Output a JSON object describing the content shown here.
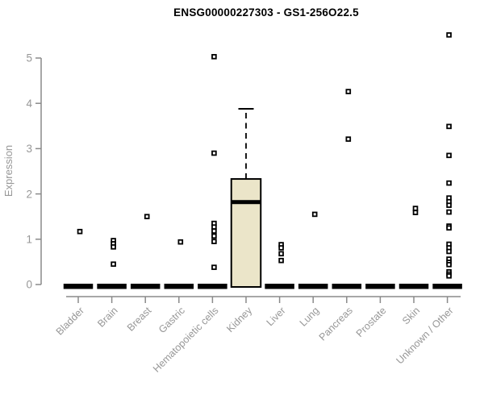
{
  "chart_data": {
    "type": "boxplot",
    "title": "ENSG00000227303 - GS1-256O22.5",
    "xlabel": "",
    "ylabel": "Expression",
    "ylim": [
      0,
      5.6
    ],
    "yticks": [
      0,
      1,
      2,
      3,
      4,
      5
    ],
    "grid": false,
    "legend": null,
    "categories": [
      "Bladder",
      "Brain",
      "Breast",
      "Gastric",
      "Hematopoietic cells",
      "Kidney",
      "Liver",
      "Lung",
      "Pancreas",
      "Prostate",
      "Skin",
      "Unknown / Other"
    ],
    "boxes": [
      {
        "category": "Bladder",
        "q1": 0,
        "median": 0,
        "q3": 0,
        "whisker_low": 0,
        "whisker_high": 0,
        "outliers": [
          1.17
        ]
      },
      {
        "category": "Brain",
        "q1": 0,
        "median": 0,
        "q3": 0,
        "whisker_low": 0,
        "whisker_high": 0,
        "outliers": [
          0.97,
          0.9,
          0.83,
          0.45
        ]
      },
      {
        "category": "Breast",
        "q1": 0,
        "median": 0,
        "q3": 0,
        "whisker_low": 0,
        "whisker_high": 0,
        "outliers": [
          1.5
        ]
      },
      {
        "category": "Gastric",
        "q1": 0,
        "median": 0,
        "q3": 0,
        "whisker_low": 0,
        "whisker_high": 0,
        "outliers": [
          0.94
        ]
      },
      {
        "category": "Hematopoietic cells",
        "q1": 0,
        "median": 0,
        "q3": 0,
        "whisker_low": 0,
        "whisker_high": 0,
        "outliers": [
          5.03,
          2.9,
          1.35,
          1.27,
          1.18,
          1.07,
          0.95,
          0.38
        ]
      },
      {
        "category": "Kidney",
        "q1": 0,
        "median": 1.82,
        "q3": 2.33,
        "whisker_low": 0,
        "whisker_high": 3.88,
        "outliers": []
      },
      {
        "category": "Liver",
        "q1": 0,
        "median": 0,
        "q3": 0,
        "whisker_low": 0,
        "whisker_high": 0,
        "outliers": [
          0.88,
          0.81,
          0.68,
          0.53
        ]
      },
      {
        "category": "Lung",
        "q1": 0,
        "median": 0,
        "q3": 0,
        "whisker_low": 0,
        "whisker_high": 0,
        "outliers": [
          1.55
        ]
      },
      {
        "category": "Pancreas",
        "q1": 0,
        "median": 0,
        "q3": 0,
        "whisker_low": 0,
        "whisker_high": 0,
        "outliers": [
          4.26,
          3.21
        ]
      },
      {
        "category": "Prostate",
        "q1": 0,
        "median": 0,
        "q3": 0,
        "whisker_low": 0,
        "whisker_high": 0,
        "outliers": []
      },
      {
        "category": "Skin",
        "q1": 0,
        "median": 0,
        "q3": 0,
        "whisker_low": 0,
        "whisker_high": 0,
        "outliers": [
          1.68,
          1.59
        ]
      },
      {
        "category": "Unknown / Other",
        "q1": 0,
        "median": 0,
        "q3": 0,
        "whisker_low": 0,
        "whisker_high": 0,
        "outliers": [
          5.51,
          3.49,
          2.85,
          2.24,
          1.91,
          1.83,
          1.75,
          1.6,
          1.29,
          1.25,
          0.89,
          0.81,
          0.73,
          0.56,
          0.49,
          0.44,
          0.28,
          0.23,
          0.19
        ]
      }
    ],
    "colors": {
      "box_fill": "#EBE5C9",
      "box_border": "#000000",
      "median": "#000000",
      "zero_bar": "#000000",
      "outlier_stroke": "#000000",
      "outlier_fill": "#ffffff",
      "axis_line": "#8a8a8a",
      "tick_label": "#979797",
      "axis_title": "#979797",
      "title": "#000000"
    }
  }
}
